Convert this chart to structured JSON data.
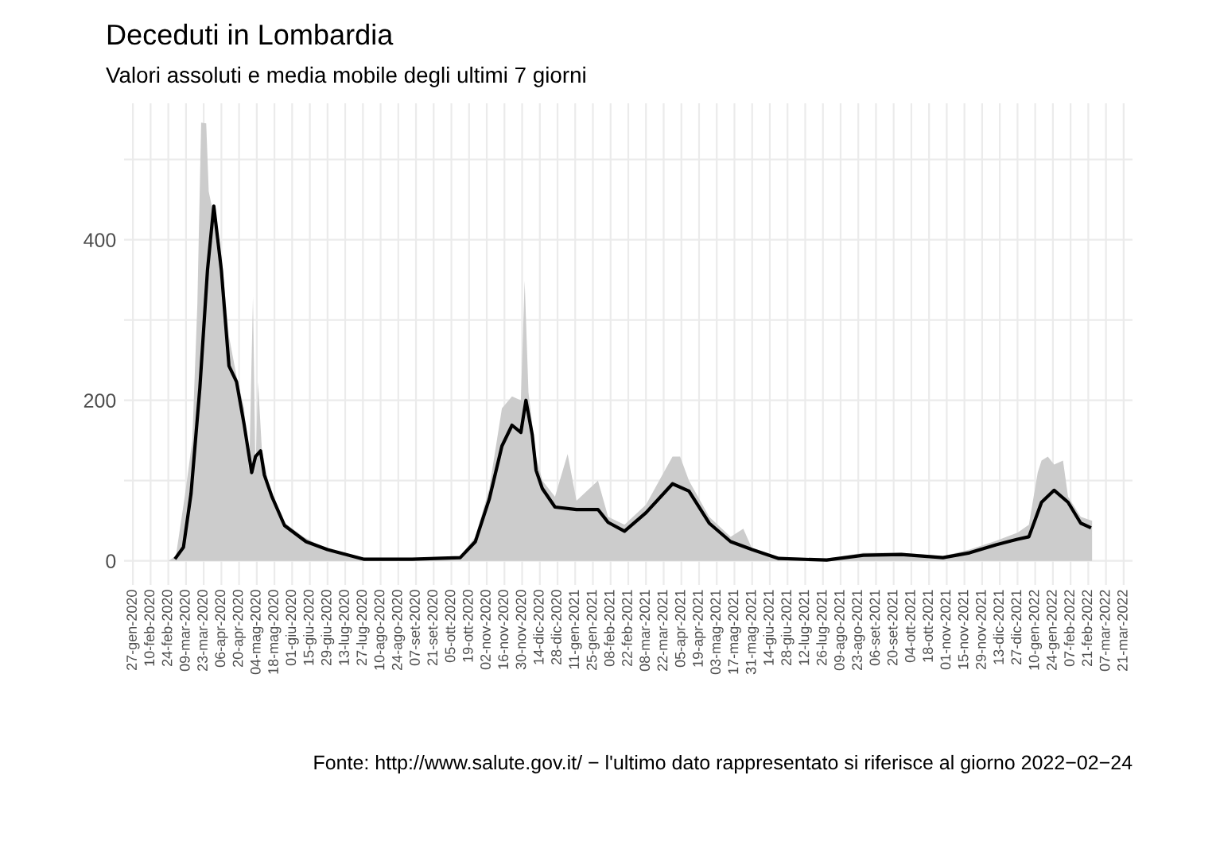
{
  "chart_data": {
    "type": "line",
    "title": "Deceduti in Lombardia",
    "subtitle": "Valori assoluti e media mobile degli ultimi 7 giorni",
    "annotations": [
      "Fonte: http://www.salute.gov.it/ − l'ultimo dato rappresentato si riferisce al giorno 2022−02−24"
    ],
    "series": [
      {
        "type": "area",
        "color": "#cccccc",
        "x": [
          "2020-02-24",
          "2020-03-01",
          "2020-03-08",
          "2020-03-14",
          "2020-03-18",
          "2020-03-21",
          "2020-03-25",
          "2020-03-27",
          "2020-03-31",
          "2020-04-06",
          "2020-04-12",
          "2020-04-18",
          "2020-04-24",
          "2020-04-28",
          "2020-05-01",
          "2020-05-03",
          "2020-05-05",
          "2020-05-08",
          "2020-05-14",
          "2020-05-24",
          "2020-06-10",
          "2020-06-28",
          "2020-07-28",
          "2020-09-04",
          "2020-10-12",
          "2020-10-24",
          "2020-11-04",
          "2020-11-14",
          "2020-11-22",
          "2020-11-29",
          "2020-12-02",
          "2020-12-05",
          "2020-12-11",
          "2020-12-16",
          "2020-12-26",
          "2021-01-05",
          "2021-01-12",
          "2021-01-29",
          "2021-02-06",
          "2021-02-19",
          "2021-03-08",
          "2021-03-22",
          "2021-03-29",
          "2021-04-04",
          "2021-04-11",
          "2021-04-27",
          "2021-05-14",
          "2021-05-24",
          "2021-05-31",
          "2021-06-21",
          "2021-07-29",
          "2021-08-27",
          "2021-09-26",
          "2021-10-29",
          "2021-11-19",
          "2021-12-10",
          "2021-12-27",
          "2022-01-05",
          "2022-01-12",
          "2022-01-15",
          "2022-01-20",
          "2022-01-25",
          "2022-02-01",
          "2022-02-05",
          "2022-02-15",
          "2022-02-24"
        ],
        "values": [
          0,
          6,
          80,
          150,
          320,
          546,
          545,
          460,
          430,
          380,
          280,
          230,
          190,
          110,
          329,
          110,
          223,
          140,
          90,
          50,
          30,
          15,
          4,
          4,
          6,
          30,
          90,
          190,
          205,
          200,
          349,
          210,
          130,
          100,
          80,
          133,
          75,
          100,
          55,
          45,
          70,
          110,
          130,
          130,
          100,
          55,
          30,
          40,
          15,
          5,
          3,
          10,
          10,
          6,
          14,
          25,
          35,
          45,
          110,
          125,
          130,
          120,
          125,
          80,
          55,
          50
        ]
      },
      {
        "color": "#000000",
        "x": [
          "2020-03-01",
          "2020-03-07",
          "2020-03-13",
          "2020-03-20",
          "2020-03-26",
          "2020-03-31",
          "2020-04-06",
          "2020-04-12",
          "2020-04-18",
          "2020-04-24",
          "2020-04-30",
          "2020-05-03",
          "2020-05-07",
          "2020-05-10",
          "2020-05-16",
          "2020-05-26",
          "2020-06-12",
          "2020-06-29",
          "2020-07-28",
          "2020-09-04",
          "2020-10-12",
          "2020-10-24",
          "2020-11-04",
          "2020-11-14",
          "2020-11-22",
          "2020-11-29",
          "2020-12-03",
          "2020-12-08",
          "2020-12-11",
          "2020-12-16",
          "2020-12-26",
          "2021-01-12",
          "2021-01-29",
          "2021-02-06",
          "2021-02-19",
          "2021-03-08",
          "2021-03-29",
          "2021-04-11",
          "2021-04-27",
          "2021-05-14",
          "2021-05-31",
          "2021-06-21",
          "2021-07-29",
          "2021-08-27",
          "2021-09-26",
          "2021-10-29",
          "2021-11-19",
          "2021-12-10",
          "2021-12-27",
          "2022-01-05",
          "2022-01-15",
          "2022-01-25",
          "2022-02-05",
          "2022-02-15",
          "2022-02-22"
        ],
        "values": [
          4,
          17,
          84,
          216,
          362,
          442,
          362,
          243,
          223,
          170,
          110,
          130,
          137,
          107,
          80,
          44,
          24,
          14,
          2,
          2,
          4,
          24,
          77,
          143,
          169,
          160,
          200,
          157,
          113,
          90,
          67,
          64,
          64,
          48,
          37,
          60,
          96,
          87,
          47,
          24,
          14,
          3,
          1,
          7,
          8,
          4,
          10,
          20,
          27,
          30,
          73,
          88,
          73,
          47,
          42
        ]
      }
    ],
    "xlim": [
      "2020-01-20",
      "2022-03-28"
    ],
    "xticks": [
      {
        "value": "2020-01-27",
        "label": "27-gen-2020"
      },
      {
        "value": "2020-02-10",
        "label": "10-feb-2020"
      },
      {
        "value": "2020-02-24",
        "label": "24-feb-2020"
      },
      {
        "value": "2020-03-09",
        "label": "09-mar-2020"
      },
      {
        "value": "2020-03-23",
        "label": "23-mar-2020"
      },
      {
        "value": "2020-04-06",
        "label": "06-apr-2020"
      },
      {
        "value": "2020-04-20",
        "label": "20-apr-2020"
      },
      {
        "value": "2020-05-04",
        "label": "04-mag-2020"
      },
      {
        "value": "2020-05-18",
        "label": "18-mag-2020"
      },
      {
        "value": "2020-06-01",
        "label": "01-giu-2020"
      },
      {
        "value": "2020-06-15",
        "label": "15-giu-2020"
      },
      {
        "value": "2020-06-29",
        "label": "29-giu-2020"
      },
      {
        "value": "2020-07-13",
        "label": "13-lug-2020"
      },
      {
        "value": "2020-07-27",
        "label": "27-lug-2020"
      },
      {
        "value": "2020-08-10",
        "label": "10-ago-2020"
      },
      {
        "value": "2020-08-24",
        "label": "24-ago-2020"
      },
      {
        "value": "2020-09-07",
        "label": "07-set-2020"
      },
      {
        "value": "2020-09-21",
        "label": "21-set-2020"
      },
      {
        "value": "2020-10-05",
        "label": "05-ott-2020"
      },
      {
        "value": "2020-10-19",
        "label": "19-ott-2020"
      },
      {
        "value": "2020-11-02",
        "label": "02-nov-2020"
      },
      {
        "value": "2020-11-16",
        "label": "16-nov-2020"
      },
      {
        "value": "2020-11-30",
        "label": "30-nov-2020"
      },
      {
        "value": "2020-12-14",
        "label": "14-dic-2020"
      },
      {
        "value": "2020-12-28",
        "label": "28-dic-2020"
      },
      {
        "value": "2021-01-11",
        "label": "11-gen-2021"
      },
      {
        "value": "2021-01-25",
        "label": "25-gen-2021"
      },
      {
        "value": "2021-02-08",
        "label": "08-feb-2021"
      },
      {
        "value": "2021-02-22",
        "label": "22-feb-2021"
      },
      {
        "value": "2021-03-08",
        "label": "08-mar-2021"
      },
      {
        "value": "2021-03-22",
        "label": "22-mar-2021"
      },
      {
        "value": "2021-04-05",
        "label": "05-apr-2021"
      },
      {
        "value": "2021-04-19",
        "label": "19-apr-2021"
      },
      {
        "value": "2021-05-03",
        "label": "03-mag-2021"
      },
      {
        "value": "2021-05-17",
        "label": "17-mag-2021"
      },
      {
        "value": "2021-05-31",
        "label": "31-mag-2021"
      },
      {
        "value": "2021-06-14",
        "label": "14-giu-2021"
      },
      {
        "value": "2021-06-28",
        "label": "28-giu-2021"
      },
      {
        "value": "2021-07-12",
        "label": "12-lug-2021"
      },
      {
        "value": "2021-07-26",
        "label": "26-lug-2021"
      },
      {
        "value": "2021-08-09",
        "label": "09-ago-2021"
      },
      {
        "value": "2021-08-23",
        "label": "23-ago-2021"
      },
      {
        "value": "2021-09-06",
        "label": "06-set-2021"
      },
      {
        "value": "2021-09-20",
        "label": "20-set-2021"
      },
      {
        "value": "2021-10-04",
        "label": "04-ott-2021"
      },
      {
        "value": "2021-10-18",
        "label": "18-ott-2021"
      },
      {
        "value": "2021-11-01",
        "label": "01-nov-2021"
      },
      {
        "value": "2021-11-15",
        "label": "15-nov-2021"
      },
      {
        "value": "2021-11-29",
        "label": "29-nov-2021"
      },
      {
        "value": "2021-12-13",
        "label": "13-dic-2021"
      },
      {
        "value": "2021-12-27",
        "label": "27-dic-2021"
      },
      {
        "value": "2022-01-10",
        "label": "10-gen-2022"
      },
      {
        "value": "2022-01-24",
        "label": "24-gen-2022"
      },
      {
        "value": "2022-02-07",
        "label": "07-feb-2022"
      },
      {
        "value": "2022-02-21",
        "label": "21-feb-2022"
      },
      {
        "value": "2022-03-07",
        "label": "07-mar-2022"
      },
      {
        "value": "2022-03-21",
        "label": "21-mar-2022"
      }
    ],
    "ylim": [
      -30,
      570
    ],
    "yticks": [
      0,
      {
        "value": 100,
        "label": null
      },
      200,
      {
        "value": 300,
        "label": null
      },
      400,
      {
        "value": 500,
        "label": null
      }
    ],
    "grid": true
  }
}
